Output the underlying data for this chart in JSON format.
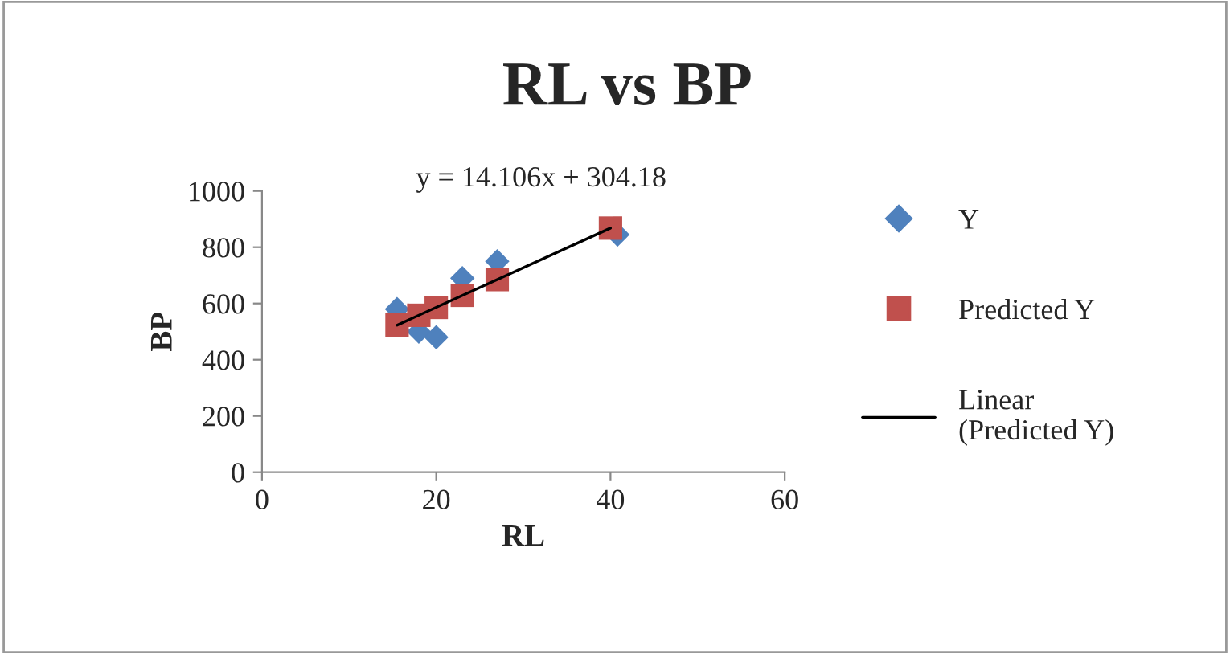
{
  "chart_data": {
    "type": "scatter",
    "title": "RL vs BP",
    "xlabel": "RL",
    "ylabel": "BP",
    "annotations": [
      "y = 14.106x + 304.18"
    ],
    "series": [
      {
        "name": "Y",
        "type": "scatter",
        "marker": "diamond",
        "color": "#4f81bd",
        "x": [
          15.5,
          18,
          20,
          23,
          27,
          40.8
        ],
        "values": [
          580,
          500,
          480,
          690,
          750,
          845
        ]
      },
      {
        "name": "Predicted Y",
        "type": "scatter",
        "marker": "square",
        "color": "#c0504d",
        "x": [
          15.5,
          18,
          20,
          23,
          27,
          40
        ],
        "values": [
          523,
          558,
          586,
          629,
          685,
          868
        ]
      },
      {
        "name": "Linear\n(Predicted Y)",
        "type": "line",
        "color": "#000000",
        "x": [
          15.5,
          40
        ],
        "values": [
          523,
          868
        ]
      }
    ],
    "xlim": [
      0,
      60
    ],
    "xticks": [
      0,
      20,
      40,
      60
    ],
    "ylim": [
      0,
      1000
    ],
    "yticks": [
      0,
      200,
      400,
      600,
      800,
      1000
    ],
    "grid": false,
    "legend": "right"
  }
}
